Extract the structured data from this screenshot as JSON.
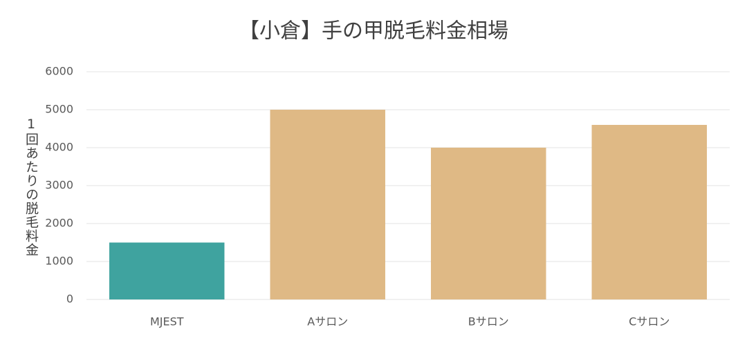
{
  "chart_data": {
    "type": "bar",
    "title": "【小倉】手の甲脱毛料金相場",
    "y_label": "1回あたりの脱毛料金",
    "categories": [
      "MJEST",
      "Aサロン",
      "Bサロン",
      "Cサロン"
    ],
    "values": [
      1500,
      5000,
      4000,
      4600
    ],
    "colors": [
      "#3fa39f",
      "#dfb985",
      "#dfb985",
      "#dfb985"
    ],
    "ylim": [
      0,
      6000
    ],
    "yticks": [
      0,
      1000,
      2000,
      3000,
      4000,
      5000,
      6000
    ],
    "grid": true
  }
}
